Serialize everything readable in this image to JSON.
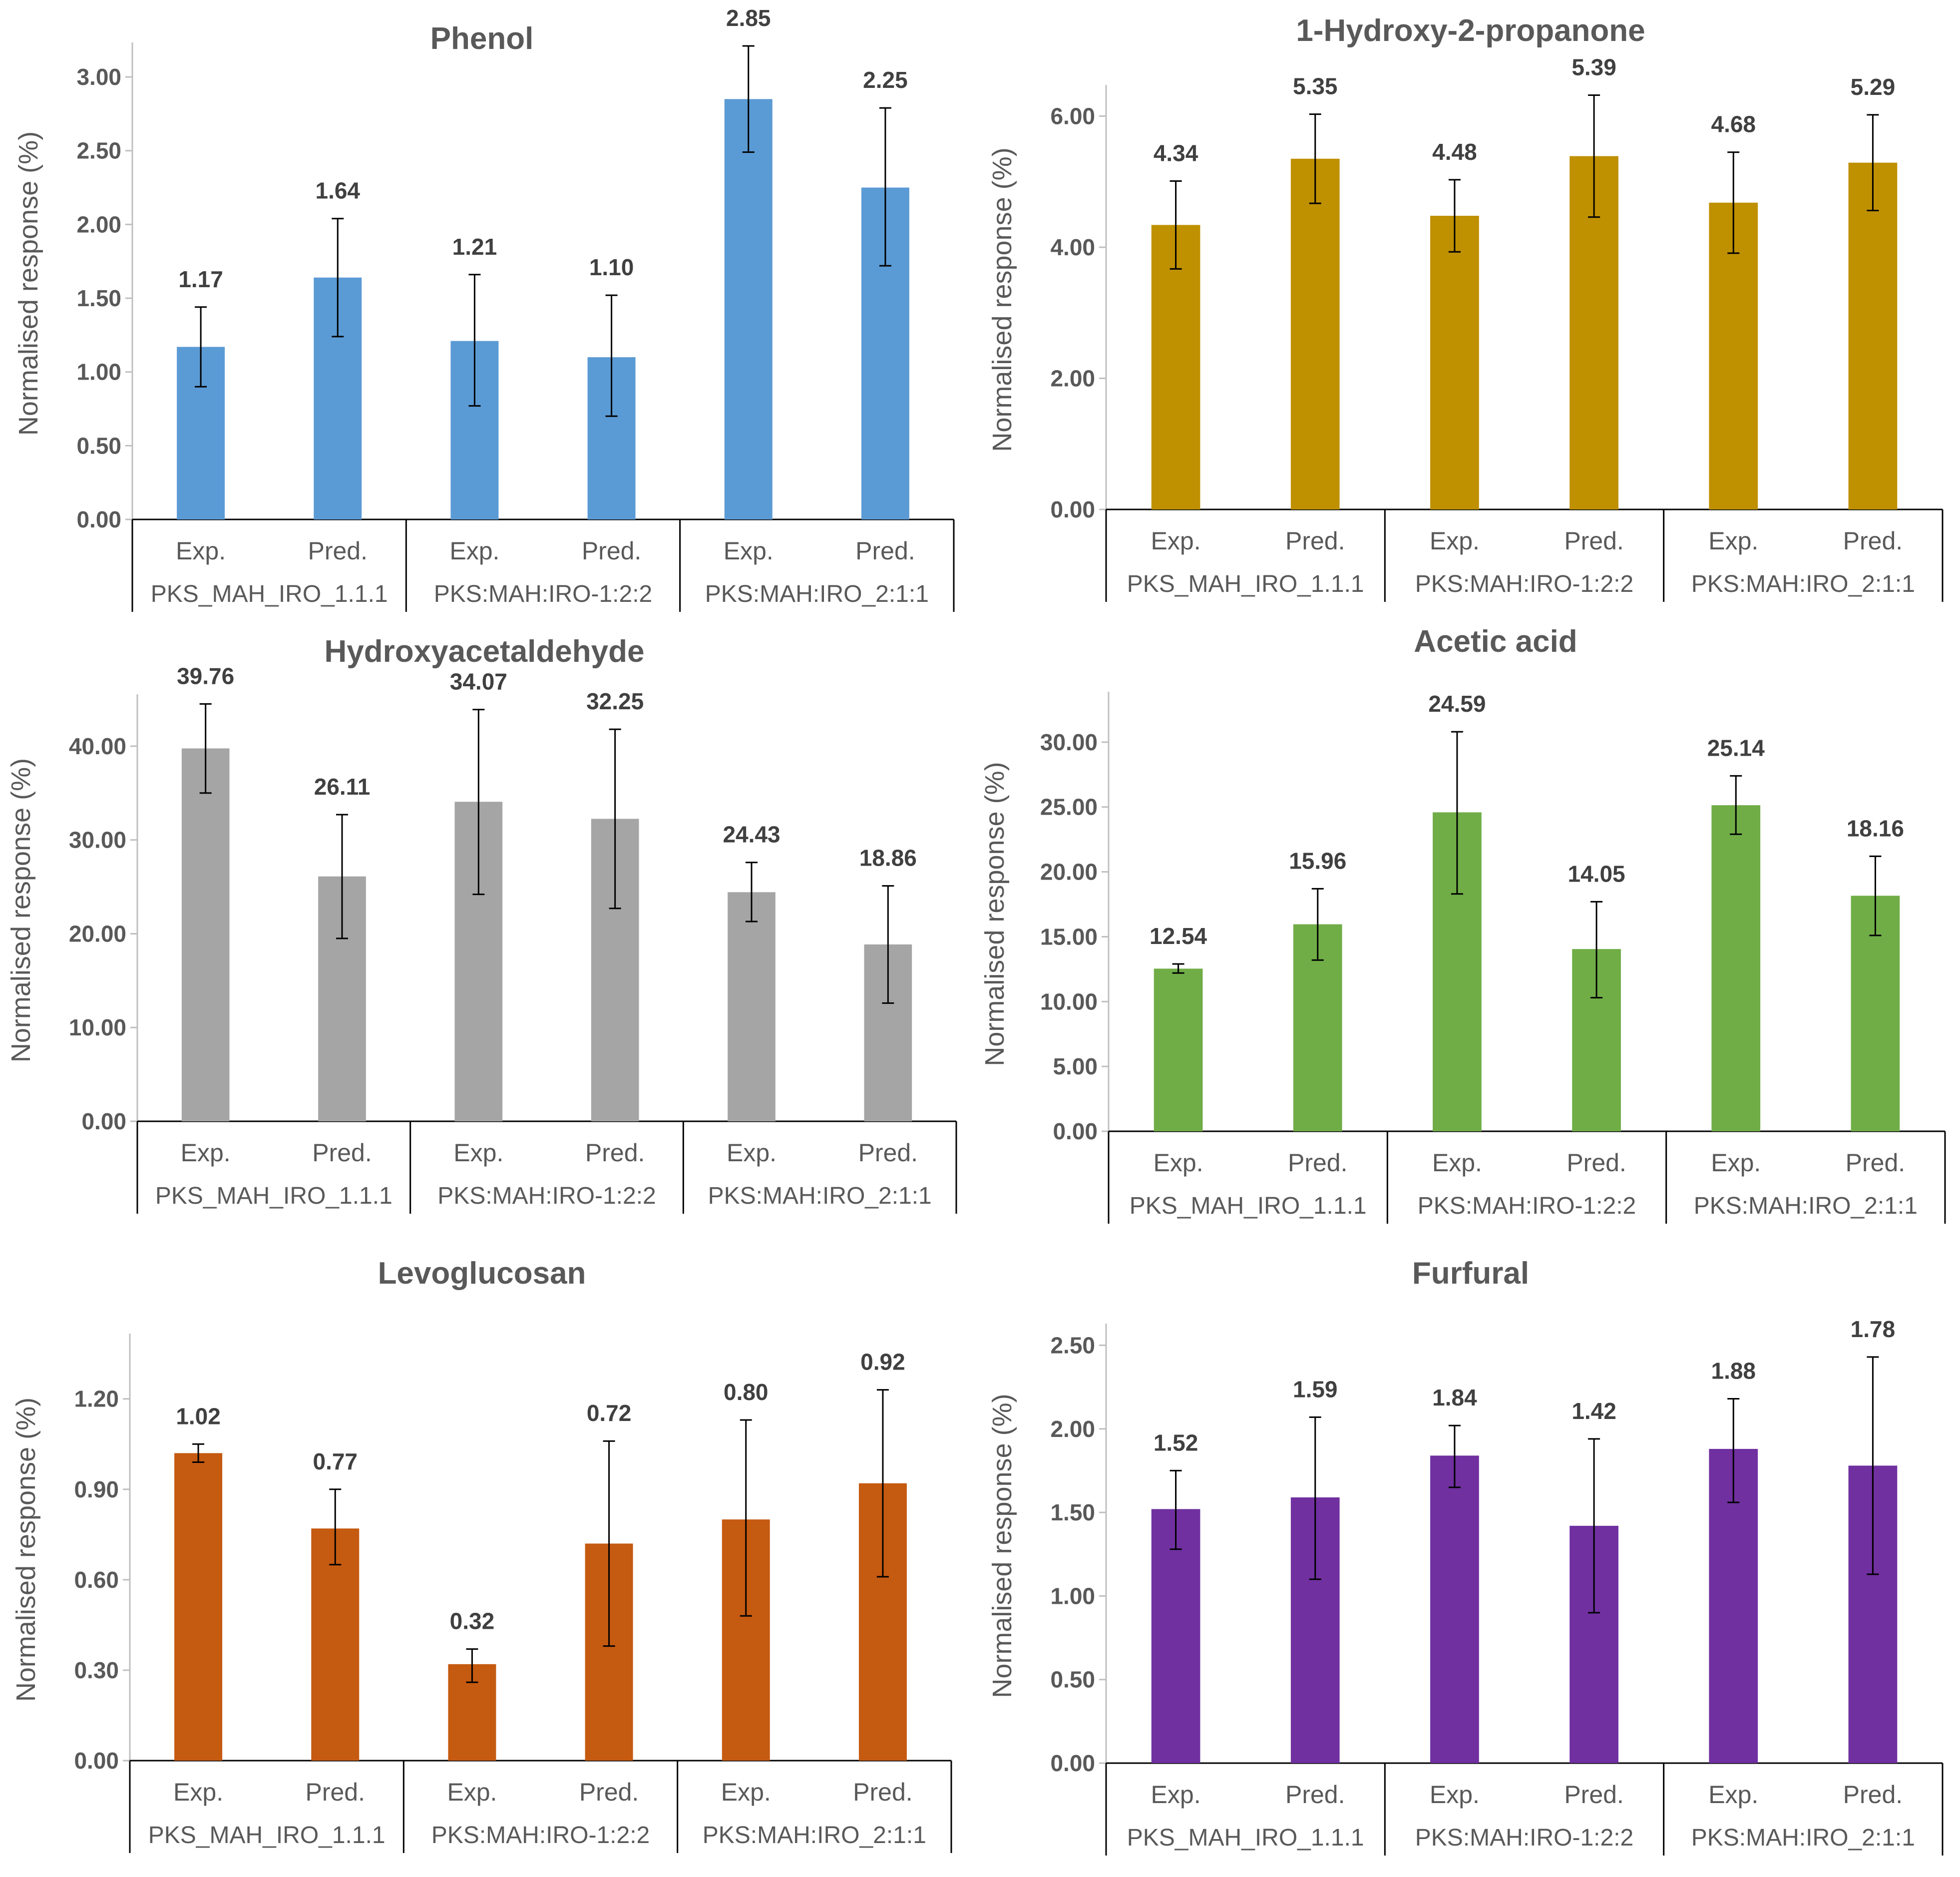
{
  "y_axis_label": "Normalised response (%)",
  "categories": [
    "Exp.",
    "Pred.",
    "Exp.",
    "Pred.",
    "Exp.",
    "Pred."
  ],
  "groups": [
    "PKS_MAH_IRO_1.1.1",
    "PKS:MAH:IRO-1:2:2",
    "PKS:MAH:IRO_2:1:1"
  ],
  "chart_data": [
    {
      "type": "bar",
      "title": "Phenol",
      "ylabel": "Normalised response (%)",
      "color": "#5B9BD5",
      "categories": [
        "Exp.",
        "Pred.",
        "Exp.",
        "Pred.",
        "Exp.",
        "Pred."
      ],
      "groups": [
        "PKS_MAH_IRO_1.1.1",
        "PKS:MAH:IRO-1:2:2",
        "PKS:MAH:IRO_2:1:1"
      ],
      "values": [
        1.17,
        1.64,
        1.21,
        1.1,
        2.85,
        2.25
      ],
      "labels": [
        "1.17",
        "1.64",
        "1.21",
        "1.10",
        "2.85",
        "2.25"
      ],
      "error_low": [
        0.9,
        1.24,
        0.77,
        0.7,
        2.49,
        1.72
      ],
      "error_high": [
        1.44,
        2.04,
        1.66,
        1.52,
        3.21,
        2.79
      ],
      "ylim": [
        0,
        3.2
      ],
      "yticks": [
        0,
        0.5,
        1.0,
        1.5,
        2.0,
        2.5,
        3.0
      ],
      "ytick_labels": [
        "0.00",
        "0.50",
        "1.00",
        "1.50",
        "2.00",
        "2.50",
        "3.00"
      ]
    },
    {
      "type": "bar",
      "title": "1-Hydroxy-2-propanone",
      "ylabel": "Normalised response (%)",
      "color": "#BF9000",
      "categories": [
        "Exp.",
        "Pred.",
        "Exp.",
        "Pred.",
        "Exp.",
        "Pred."
      ],
      "groups": [
        "PKS_MAH_IRO_1.1.1",
        "PKS:MAH:IRO-1:2:2",
        "PKS:MAH:IRO_2:1:1"
      ],
      "values": [
        4.34,
        5.35,
        4.48,
        5.39,
        4.68,
        5.29
      ],
      "labels": [
        "4.34",
        "5.35",
        "4.48",
        "5.39",
        "4.68",
        "5.29"
      ],
      "error_low": [
        3.67,
        4.67,
        3.93,
        4.46,
        3.91,
        4.56
      ],
      "error_high": [
        5.01,
        6.03,
        5.03,
        6.32,
        5.45,
        6.02
      ],
      "ylim": [
        0,
        6.4
      ],
      "yticks": [
        0,
        2,
        4,
        6
      ],
      "ytick_labels": [
        "0.00",
        "2.00",
        "4.00",
        "6.00"
      ]
    },
    {
      "type": "bar",
      "title": "Hydroxyacetaldehyde",
      "ylabel": "Normalised response (%)",
      "color": "#A5A5A5",
      "categories": [
        "Exp.",
        "Pred.",
        "Exp.",
        "Pred.",
        "Exp.",
        "Pred."
      ],
      "groups": [
        "PKS_MAH_IRO_1.1.1",
        "PKS:MAH:IRO-1:2:2",
        "PKS:MAH:IRO_2:1:1"
      ],
      "values": [
        39.76,
        26.11,
        34.07,
        32.25,
        24.43,
        18.86
      ],
      "labels": [
        "39.76",
        "26.11",
        "34.07",
        "32.25",
        "24.43",
        "18.86"
      ],
      "error_low": [
        35.0,
        19.5,
        24.2,
        22.7,
        21.3,
        12.6
      ],
      "error_high": [
        44.5,
        32.7,
        43.9,
        41.8,
        27.6,
        25.1
      ],
      "ylim": [
        0,
        45
      ],
      "yticks": [
        0,
        10,
        20,
        30,
        40
      ],
      "ytick_labels": [
        "0.00",
        "10.00",
        "20.00",
        "30.00",
        "40.00"
      ]
    },
    {
      "type": "bar",
      "title": "Acetic acid",
      "ylabel": "Normalised response (%)",
      "color": "#70AD47",
      "categories": [
        "Exp.",
        "Pred.",
        "Exp.",
        "Pred.",
        "Exp.",
        "Pred."
      ],
      "groups": [
        "PKS_MAH_IRO_1.1.1",
        "PKS:MAH:IRO-1:2:2",
        "PKS:MAH:IRO_2:1:1"
      ],
      "values": [
        12.54,
        15.96,
        24.59,
        14.05,
        25.14,
        18.16
      ],
      "labels": [
        "12.54",
        "15.96",
        "24.59",
        "14.05",
        "25.14",
        "18.16"
      ],
      "error_low": [
        12.2,
        13.2,
        18.3,
        10.3,
        22.9,
        15.1
      ],
      "error_high": [
        12.9,
        18.7,
        30.8,
        17.7,
        27.4,
        21.2
      ],
      "ylim": [
        0,
        33.5
      ],
      "yticks": [
        0,
        5,
        10,
        15,
        20,
        25,
        30
      ],
      "ytick_labels": [
        "0.00",
        "5.00",
        "10.00",
        "15.00",
        "20.00",
        "25.00",
        "30.00"
      ]
    },
    {
      "type": "bar",
      "title": "Levoglucosan",
      "ylabel": "Normalised response (%)",
      "color": "#C55A11",
      "categories": [
        "Exp.",
        "Pred.",
        "Exp.",
        "Pred.",
        "Exp.",
        "Pred."
      ],
      "groups": [
        "PKS_MAH_IRO_1.1.1",
        "PKS:MAH:IRO-1:2:2",
        "PKS:MAH:IRO_2:1:1"
      ],
      "values": [
        1.02,
        0.77,
        0.32,
        0.72,
        0.8,
        0.92
      ],
      "labels": [
        "1.02",
        "0.77",
        "0.32",
        "0.72",
        "0.80",
        "0.92"
      ],
      "error_low": [
        0.99,
        0.65,
        0.26,
        0.38,
        0.48,
        0.61
      ],
      "error_high": [
        1.05,
        0.9,
        0.37,
        1.06,
        1.13,
        1.23
      ],
      "ylim": [
        0,
        1.4
      ],
      "yticks": [
        0,
        0.3,
        0.6,
        0.9,
        1.2
      ],
      "ytick_labels": [
        "0.00",
        "0.30",
        "0.60",
        "0.90",
        "1.20"
      ]
    },
    {
      "type": "bar",
      "title": "Furfural",
      "ylabel": "Normalised response (%)",
      "color": "#7030A0",
      "categories": [
        "Exp.",
        "Pred.",
        "Exp.",
        "Pred.",
        "Exp.",
        "Pred."
      ],
      "groups": [
        "PKS_MAH_IRO_1.1.1",
        "PKS:MAH:IRO-1:2:2",
        "PKS:MAH:IRO_2:1:1"
      ],
      "values": [
        1.52,
        1.59,
        1.84,
        1.42,
        1.88,
        1.78
      ],
      "labels": [
        "1.52",
        "1.59",
        "1.84",
        "1.42",
        "1.88",
        "1.78"
      ],
      "error_low": [
        1.28,
        1.1,
        1.65,
        0.9,
        1.56,
        1.13
      ],
      "error_high": [
        1.75,
        2.07,
        2.02,
        1.94,
        2.18,
        2.43
      ],
      "ylim": [
        0,
        2.6
      ],
      "yticks": [
        0,
        0.5,
        1.0,
        1.5,
        2.0,
        2.5
      ],
      "ytick_labels": [
        "0.00",
        "0.50",
        "1.00",
        "1.50",
        "2.00",
        "2.50"
      ]
    }
  ]
}
